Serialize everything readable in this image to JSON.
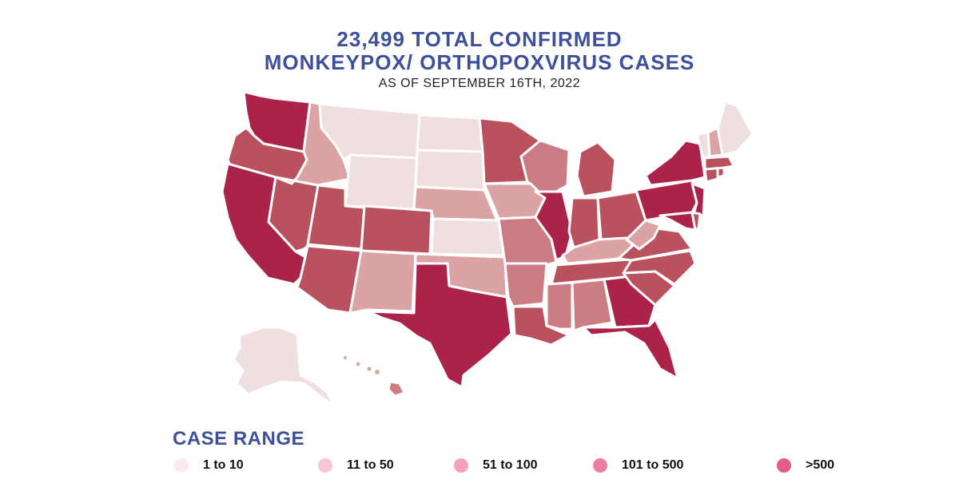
{
  "header": {
    "title_line1": "23,499 TOTAL CONFIRMED",
    "title_line2": "MONKEYPOX/ ORTHOPOXVIRUS CASES",
    "subtitle": "AS OF SEPTEMBER 16TH, 2022"
  },
  "legend": {
    "title": "CASE RANGE",
    "items": [
      {
        "label": "1 to 10",
        "color": "#fbeaec"
      },
      {
        "label": "11 to 50",
        "color": "#f6c6d1"
      },
      {
        "label": "51 to 100",
        "color": "#f1a3b9"
      },
      {
        "label": "101 to 500",
        "color": "#ec7fa1"
      },
      {
        "label": ">500",
        "color": "#e55b8c"
      }
    ]
  },
  "map_colors": {
    "1-10": "#f0dfdf",
    "11-50": "#dba3a3",
    "51-100": "#cc7d83",
    "101-500": "#b9525e",
    "500+": "#ab2349"
  },
  "states": [
    {
      "id": "WA",
      "range": "500+"
    },
    {
      "id": "OR",
      "range": "101-500"
    },
    {
      "id": "CA",
      "range": "500+"
    },
    {
      "id": "NV",
      "range": "101-500"
    },
    {
      "id": "ID",
      "range": "11-50"
    },
    {
      "id": "MT",
      "range": "1-10"
    },
    {
      "id": "WY",
      "range": "1-10"
    },
    {
      "id": "UT",
      "range": "101-500"
    },
    {
      "id": "AZ",
      "range": "101-500"
    },
    {
      "id": "CO",
      "range": "101-500"
    },
    {
      "id": "NM",
      "range": "11-50"
    },
    {
      "id": "ND",
      "range": "1-10"
    },
    {
      "id": "SD",
      "range": "1-10"
    },
    {
      "id": "NE",
      "range": "11-50"
    },
    {
      "id": "KS",
      "range": "1-10"
    },
    {
      "id": "OK",
      "range": "11-50"
    },
    {
      "id": "TX",
      "range": "500+"
    },
    {
      "id": "MN",
      "range": "101-500"
    },
    {
      "id": "IA",
      "range": "11-50"
    },
    {
      "id": "MO",
      "range": "51-100"
    },
    {
      "id": "AR",
      "range": "51-100"
    },
    {
      "id": "LA",
      "range": "101-500"
    },
    {
      "id": "WI",
      "range": "51-100"
    },
    {
      "id": "IL",
      "range": "500+"
    },
    {
      "id": "MI",
      "range": "101-500"
    },
    {
      "id": "IN",
      "range": "101-500"
    },
    {
      "id": "OH",
      "range": "101-500"
    },
    {
      "id": "KY",
      "range": "11-50"
    },
    {
      "id": "TN",
      "range": "101-500"
    },
    {
      "id": "MS",
      "range": "51-100"
    },
    {
      "id": "AL",
      "range": "51-100"
    },
    {
      "id": "GA",
      "range": "500+"
    },
    {
      "id": "FL",
      "range": "500+"
    },
    {
      "id": "SC",
      "range": "101-500"
    },
    {
      "id": "NC",
      "range": "101-500"
    },
    {
      "id": "VA",
      "range": "101-500"
    },
    {
      "id": "WV",
      "range": "11-50"
    },
    {
      "id": "PA",
      "range": "500+"
    },
    {
      "id": "NY",
      "range": "500+"
    },
    {
      "id": "NJ",
      "range": "500+"
    },
    {
      "id": "MD",
      "range": "500+"
    },
    {
      "id": "DE",
      "range": "101-500"
    },
    {
      "id": "CT",
      "range": "101-500"
    },
    {
      "id": "RI",
      "range": "101-500"
    },
    {
      "id": "MA",
      "range": "101-500"
    },
    {
      "id": "VT",
      "range": "1-10"
    },
    {
      "id": "NH",
      "range": "11-50"
    },
    {
      "id": "ME",
      "range": "1-10"
    },
    {
      "id": "AK",
      "range": "1-10"
    },
    {
      "id": "HI",
      "range": "51-100"
    }
  ]
}
